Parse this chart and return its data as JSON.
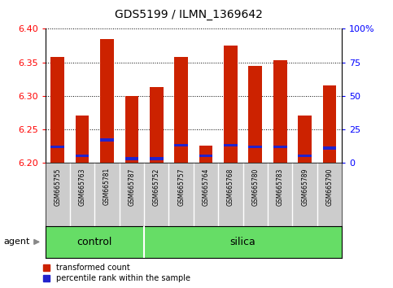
{
  "title": "GDS5199 / ILMN_1369642",
  "samples": [
    "GSM665755",
    "GSM665763",
    "GSM665781",
    "GSM665787",
    "GSM665752",
    "GSM665757",
    "GSM665764",
    "GSM665768",
    "GSM665780",
    "GSM665783",
    "GSM665789",
    "GSM665790"
  ],
  "groups": [
    "control",
    "control",
    "control",
    "control",
    "silica",
    "silica",
    "silica",
    "silica",
    "silica",
    "silica",
    "silica",
    "silica"
  ],
  "red_values": [
    6.358,
    6.27,
    6.385,
    6.3,
    6.313,
    6.358,
    6.225,
    6.375,
    6.345,
    6.353,
    6.27,
    6.315
  ],
  "blue_values": [
    6.222,
    6.208,
    6.232,
    6.204,
    6.204,
    6.224,
    6.208,
    6.224,
    6.222,
    6.222,
    6.208,
    6.22
  ],
  "blue_heights": [
    0.004,
    0.004,
    0.004,
    0.004,
    0.004,
    0.004,
    0.004,
    0.004,
    0.004,
    0.004,
    0.004,
    0.004
  ],
  "y_min": 6.2,
  "y_max": 6.4,
  "y_ticks": [
    6.2,
    6.25,
    6.3,
    6.35,
    6.4
  ],
  "y_right_ticks": [
    0,
    25,
    50,
    75,
    100
  ],
  "y_right_labels": [
    "0",
    "25",
    "50",
    "75",
    "100%"
  ],
  "bar_width": 0.55,
  "group_bg_color": "#66DD66",
  "sample_bg_color": "#CCCCCC",
  "red_color": "#CC2200",
  "blue_color": "#2222CC",
  "control_label": "control",
  "silica_label": "silica",
  "agent_label": "agent"
}
